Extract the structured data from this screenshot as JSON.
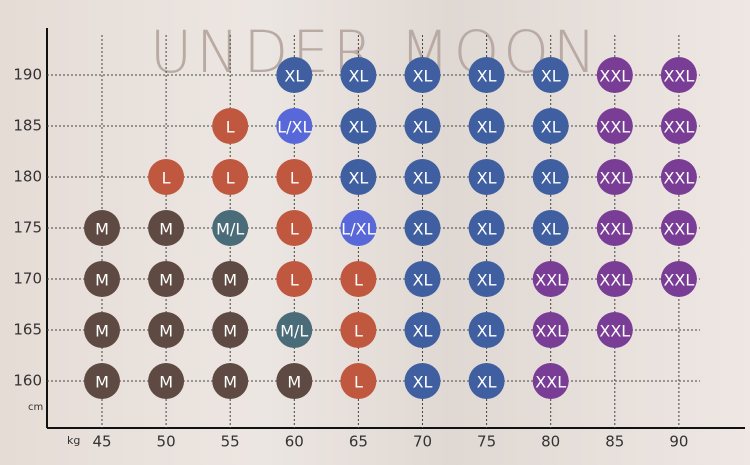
{
  "brand": "UNDER MOON",
  "y_unit": "cm",
  "x_unit": "kg",
  "heights": [
    190,
    185,
    180,
    175,
    170,
    165,
    160
  ],
  "weights": [
    45,
    50,
    55,
    60,
    65,
    70,
    75,
    80,
    85,
    90
  ],
  "rows": [
    [
      null,
      null,
      null,
      {
        "size": "XL",
        "color": "#3f5fa0"
      },
      {
        "size": "XL",
        "color": "#3f5fa0"
      },
      {
        "size": "XL",
        "color": "#3f5fa0"
      },
      {
        "size": "XL",
        "color": "#3f5fa0"
      },
      {
        "size": "XL",
        "color": "#3f5fa0"
      },
      {
        "size": "XXL",
        "color": "#7a3d96"
      },
      {
        "size": "XXL",
        "color": "#7a3d96"
      }
    ],
    [
      null,
      null,
      {
        "size": "L",
        "color": "#c0573f"
      },
      {
        "size": "L/XL",
        "color": "#5868d8"
      },
      {
        "size": "XL",
        "color": "#3f5fa0"
      },
      {
        "size": "XL",
        "color": "#3f5fa0"
      },
      {
        "size": "XL",
        "color": "#3f5fa0"
      },
      {
        "size": "XL",
        "color": "#3f5fa0"
      },
      {
        "size": "XXL",
        "color": "#7a3d96"
      },
      {
        "size": "XXL",
        "color": "#7a3d96"
      }
    ],
    [
      null,
      {
        "size": "L",
        "color": "#c0573f"
      },
      {
        "size": "L",
        "color": "#c0573f"
      },
      {
        "size": "L",
        "color": "#c0573f"
      },
      {
        "size": "XL",
        "color": "#3f5fa0"
      },
      {
        "size": "XL",
        "color": "#3f5fa0"
      },
      {
        "size": "XL",
        "color": "#3f5fa0"
      },
      {
        "size": "XL",
        "color": "#3f5fa0"
      },
      {
        "size": "XXL",
        "color": "#7a3d96"
      },
      {
        "size": "XXL",
        "color": "#7a3d96"
      }
    ],
    [
      {
        "size": "M",
        "color": "#5e4a42"
      },
      {
        "size": "M",
        "color": "#5e4a42"
      },
      {
        "size": "M/L",
        "color": "#4a6b78"
      },
      {
        "size": "L",
        "color": "#c0573f"
      },
      {
        "size": "L/XL",
        "color": "#5868d8"
      },
      {
        "size": "XL",
        "color": "#3f5fa0"
      },
      {
        "size": "XL",
        "color": "#3f5fa0"
      },
      {
        "size": "XL",
        "color": "#3f5fa0"
      },
      {
        "size": "XXL",
        "color": "#7a3d96"
      },
      {
        "size": "XXL",
        "color": "#7a3d96"
      }
    ],
    [
      {
        "size": "M",
        "color": "#5e4a42"
      },
      {
        "size": "M",
        "color": "#5e4a42"
      },
      {
        "size": "M",
        "color": "#5e4a42"
      },
      {
        "size": "L",
        "color": "#c0573f"
      },
      {
        "size": "L",
        "color": "#c0573f"
      },
      {
        "size": "XL",
        "color": "#3f5fa0"
      },
      {
        "size": "XL",
        "color": "#3f5fa0"
      },
      {
        "size": "XXL",
        "color": "#7a3d96"
      },
      {
        "size": "XXL",
        "color": "#7a3d96"
      },
      {
        "size": "XXL",
        "color": "#7a3d96"
      }
    ],
    [
      {
        "size": "M",
        "color": "#5e4a42"
      },
      {
        "size": "M",
        "color": "#5e4a42"
      },
      {
        "size": "M",
        "color": "#5e4a42"
      },
      {
        "size": "M/L",
        "color": "#4a6b78"
      },
      {
        "size": "L",
        "color": "#c0573f"
      },
      {
        "size": "XL",
        "color": "#3f5fa0"
      },
      {
        "size": "XL",
        "color": "#3f5fa0"
      },
      {
        "size": "XXL",
        "color": "#7a3d96"
      },
      {
        "size": "XXL",
        "color": "#7a3d96"
      },
      null
    ],
    [
      {
        "size": "M",
        "color": "#5e4a42"
      },
      {
        "size": "M",
        "color": "#5e4a42"
      },
      {
        "size": "M",
        "color": "#5e4a42"
      },
      {
        "size": "M",
        "color": "#5e4a42"
      },
      {
        "size": "L",
        "color": "#c0573f"
      },
      {
        "size": "XL",
        "color": "#3f5fa0"
      },
      {
        "size": "XL",
        "color": "#3f5fa0"
      },
      {
        "size": "XXL",
        "color": "#7a3d96"
      },
      null,
      null
    ]
  ]
}
